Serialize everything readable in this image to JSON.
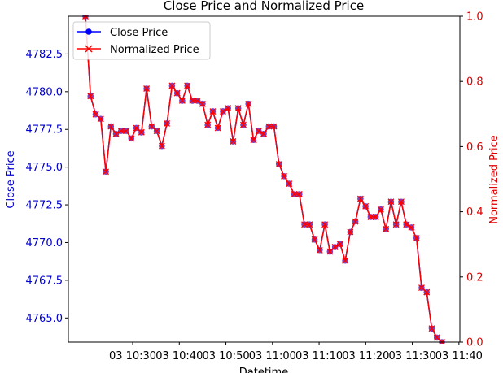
{
  "chart_data": {
    "type": "line",
    "title": "Close Price and Normalized Price",
    "xlabel": "Datetime",
    "ylabel_left": "Close Price",
    "ylabel_right": "Normalized Price",
    "x_ticks": [
      "03 10:30",
      "03 10:40",
      "03 10:50",
      "03 11:00",
      "03 11:10",
      "03 11:20",
      "03 11:30",
      "03 11:40"
    ],
    "y_left_ticks": [
      "4765.0",
      "4767.5",
      "4770.0",
      "4772.5",
      "4775.0",
      "4777.5",
      "4780.0",
      "4782.5"
    ],
    "y_right_ticks": [
      "0.0",
      "0.2",
      "0.4",
      "0.6",
      "0.8",
      "1.0"
    ],
    "ylim_left": [
      4763.4,
      4785.0
    ],
    "ylim_right": [
      0.0,
      1.0
    ],
    "xlim_minutes": [
      10.27,
      11.67
    ],
    "legend_position": "upper-left",
    "colors": {
      "left_axis": "#0000cc",
      "right_axis": "#dd0000",
      "close_line": "#0000ff",
      "normalized_line": "#ff0000",
      "marker_fill": "#7f3fbf"
    },
    "series": [
      {
        "name": "Close Price",
        "axis": "left",
        "marker": "circle",
        "values": [
          4785.0,
          4779.7,
          4778.5,
          4778.2,
          4774.7,
          4777.7,
          4777.2,
          4777.4,
          4777.4,
          4776.9,
          4777.6,
          4777.3,
          4780.2,
          4777.7,
          4777.4,
          4776.4,
          4777.9,
          4780.4,
          4779.9,
          4779.4,
          4780.4,
          4779.4,
          4779.4,
          4779.2,
          4777.8,
          4778.7,
          4777.6,
          4778.7,
          4778.9,
          4776.7,
          4778.9,
          4777.8,
          4779.2,
          4776.8,
          4777.4,
          4777.2,
          4777.7,
          4777.7,
          4775.2,
          4774.4,
          4773.9,
          4773.2,
          4773.2,
          4771.2,
          4771.2,
          4770.2,
          4769.5,
          4771.2,
          4769.4,
          4769.7,
          4769.9,
          4768.8,
          4770.7,
          4771.4,
          4772.9,
          4772.4,
          4771.7,
          4771.7,
          4772.2,
          4770.9,
          4772.7,
          4771.2,
          4772.7,
          4771.2,
          4771.0,
          4770.3,
          4767.0,
          4766.7,
          4764.3,
          4763.7,
          4763.4
        ]
      },
      {
        "name": "Normalized Price",
        "axis": "right",
        "marker": "x",
        "values": [
          1.0,
          0.755,
          0.699,
          0.685,
          0.523,
          0.662,
          0.639,
          0.648,
          0.648,
          0.625,
          0.657,
          0.644,
          0.778,
          0.662,
          0.648,
          0.602,
          0.671,
          0.787,
          0.764,
          0.741,
          0.787,
          0.741,
          0.741,
          0.731,
          0.667,
          0.708,
          0.657,
          0.708,
          0.718,
          0.616,
          0.718,
          0.667,
          0.731,
          0.62,
          0.648,
          0.639,
          0.662,
          0.662,
          0.546,
          0.509,
          0.486,
          0.454,
          0.454,
          0.361,
          0.361,
          0.315,
          0.282,
          0.361,
          0.278,
          0.292,
          0.301,
          0.25,
          0.338,
          0.37,
          0.44,
          0.417,
          0.384,
          0.384,
          0.407,
          0.347,
          0.431,
          0.361,
          0.431,
          0.361,
          0.352,
          0.319,
          0.167,
          0.153,
          0.042,
          0.014,
          0.0
        ]
      }
    ]
  }
}
